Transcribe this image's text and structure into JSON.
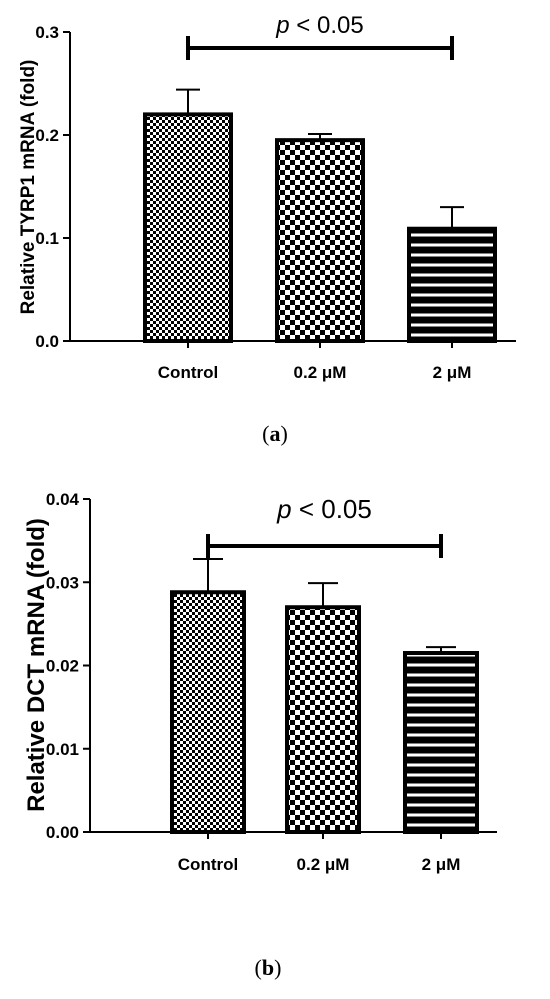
{
  "panels": [
    {
      "caption_open": "(",
      "caption_letter": "a",
      "caption_close": ")",
      "significance": {
        "p_symbol": "p",
        "p_text": " < 0.05",
        "from_category": "Control",
        "to_category": "2 μM"
      }
    },
    {
      "caption_open": "(",
      "caption_letter": "b",
      "caption_close": ")",
      "significance": {
        "p_symbol": "p",
        "p_text": " < 0.05",
        "from_category": "Control",
        "to_category": "2 μM"
      }
    }
  ],
  "chart_data": [
    {
      "type": "bar",
      "categories": [
        "Control",
        "0.2 μM",
        "2 μM"
      ],
      "values": [
        0.22,
        0.195,
        0.109
      ],
      "errors": [
        0.024,
        0.006,
        0.021
      ],
      "patterns": [
        "fine-checker",
        "coarse-checker",
        "horizontal-stripes"
      ],
      "ylabel": "Relative TYRP1 mRNA (fold)",
      "ylim": [
        0,
        0.3
      ],
      "yticks": [
        0.0,
        0.1,
        0.2,
        0.3
      ],
      "ytick_labels": [
        "0.0",
        "0.1",
        "0.2",
        "0.3"
      ],
      "grid": false
    },
    {
      "type": "bar",
      "categories": [
        "Control",
        "0.2 μM",
        "2 μM"
      ],
      "values": [
        0.0288,
        0.027,
        0.0215
      ],
      "errors": [
        0.004,
        0.0029,
        0.0007
      ],
      "patterns": [
        "fine-checker",
        "coarse-checker",
        "horizontal-stripes"
      ],
      "ylabel": "Relative DCT mRNA (fold)",
      "ylim": [
        0,
        0.04
      ],
      "yticks": [
        0.0,
        0.01,
        0.02,
        0.03,
        0.04
      ],
      "ytick_labels": [
        "0.00",
        "0.01",
        "0.02",
        "0.03",
        "0.04"
      ],
      "grid": false
    }
  ]
}
